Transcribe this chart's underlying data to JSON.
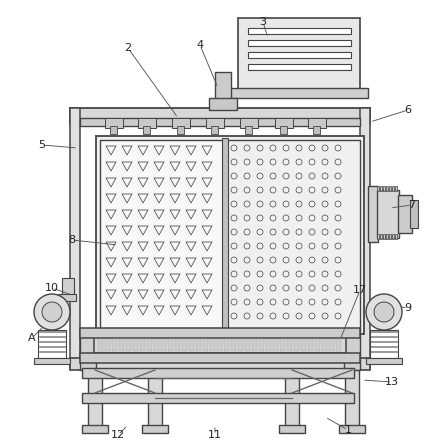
{
  "bg_color": "#ffffff",
  "lc": "#666666",
  "dk": "#444444",
  "label_data": [
    [
      "1",
      348,
      430,
      325,
      417
    ],
    [
      "2",
      128,
      48,
      178,
      118
    ],
    [
      "3",
      263,
      22,
      268,
      38
    ],
    [
      "4",
      200,
      45,
      218,
      88
    ],
    [
      "5",
      42,
      145,
      78,
      148
    ],
    [
      "6",
      408,
      110,
      370,
      122
    ],
    [
      "7",
      412,
      205,
      390,
      208
    ],
    [
      "8",
      72,
      240,
      118,
      245
    ],
    [
      "9",
      408,
      308,
      388,
      305
    ],
    [
      "10",
      52,
      288,
      72,
      295
    ],
    [
      "11",
      215,
      435,
      215,
      425
    ],
    [
      "12",
      118,
      435,
      128,
      425
    ],
    [
      "13",
      392,
      382,
      362,
      380
    ],
    [
      "17",
      360,
      290,
      340,
      340
    ],
    [
      "A",
      32,
      338,
      52,
      318
    ]
  ]
}
